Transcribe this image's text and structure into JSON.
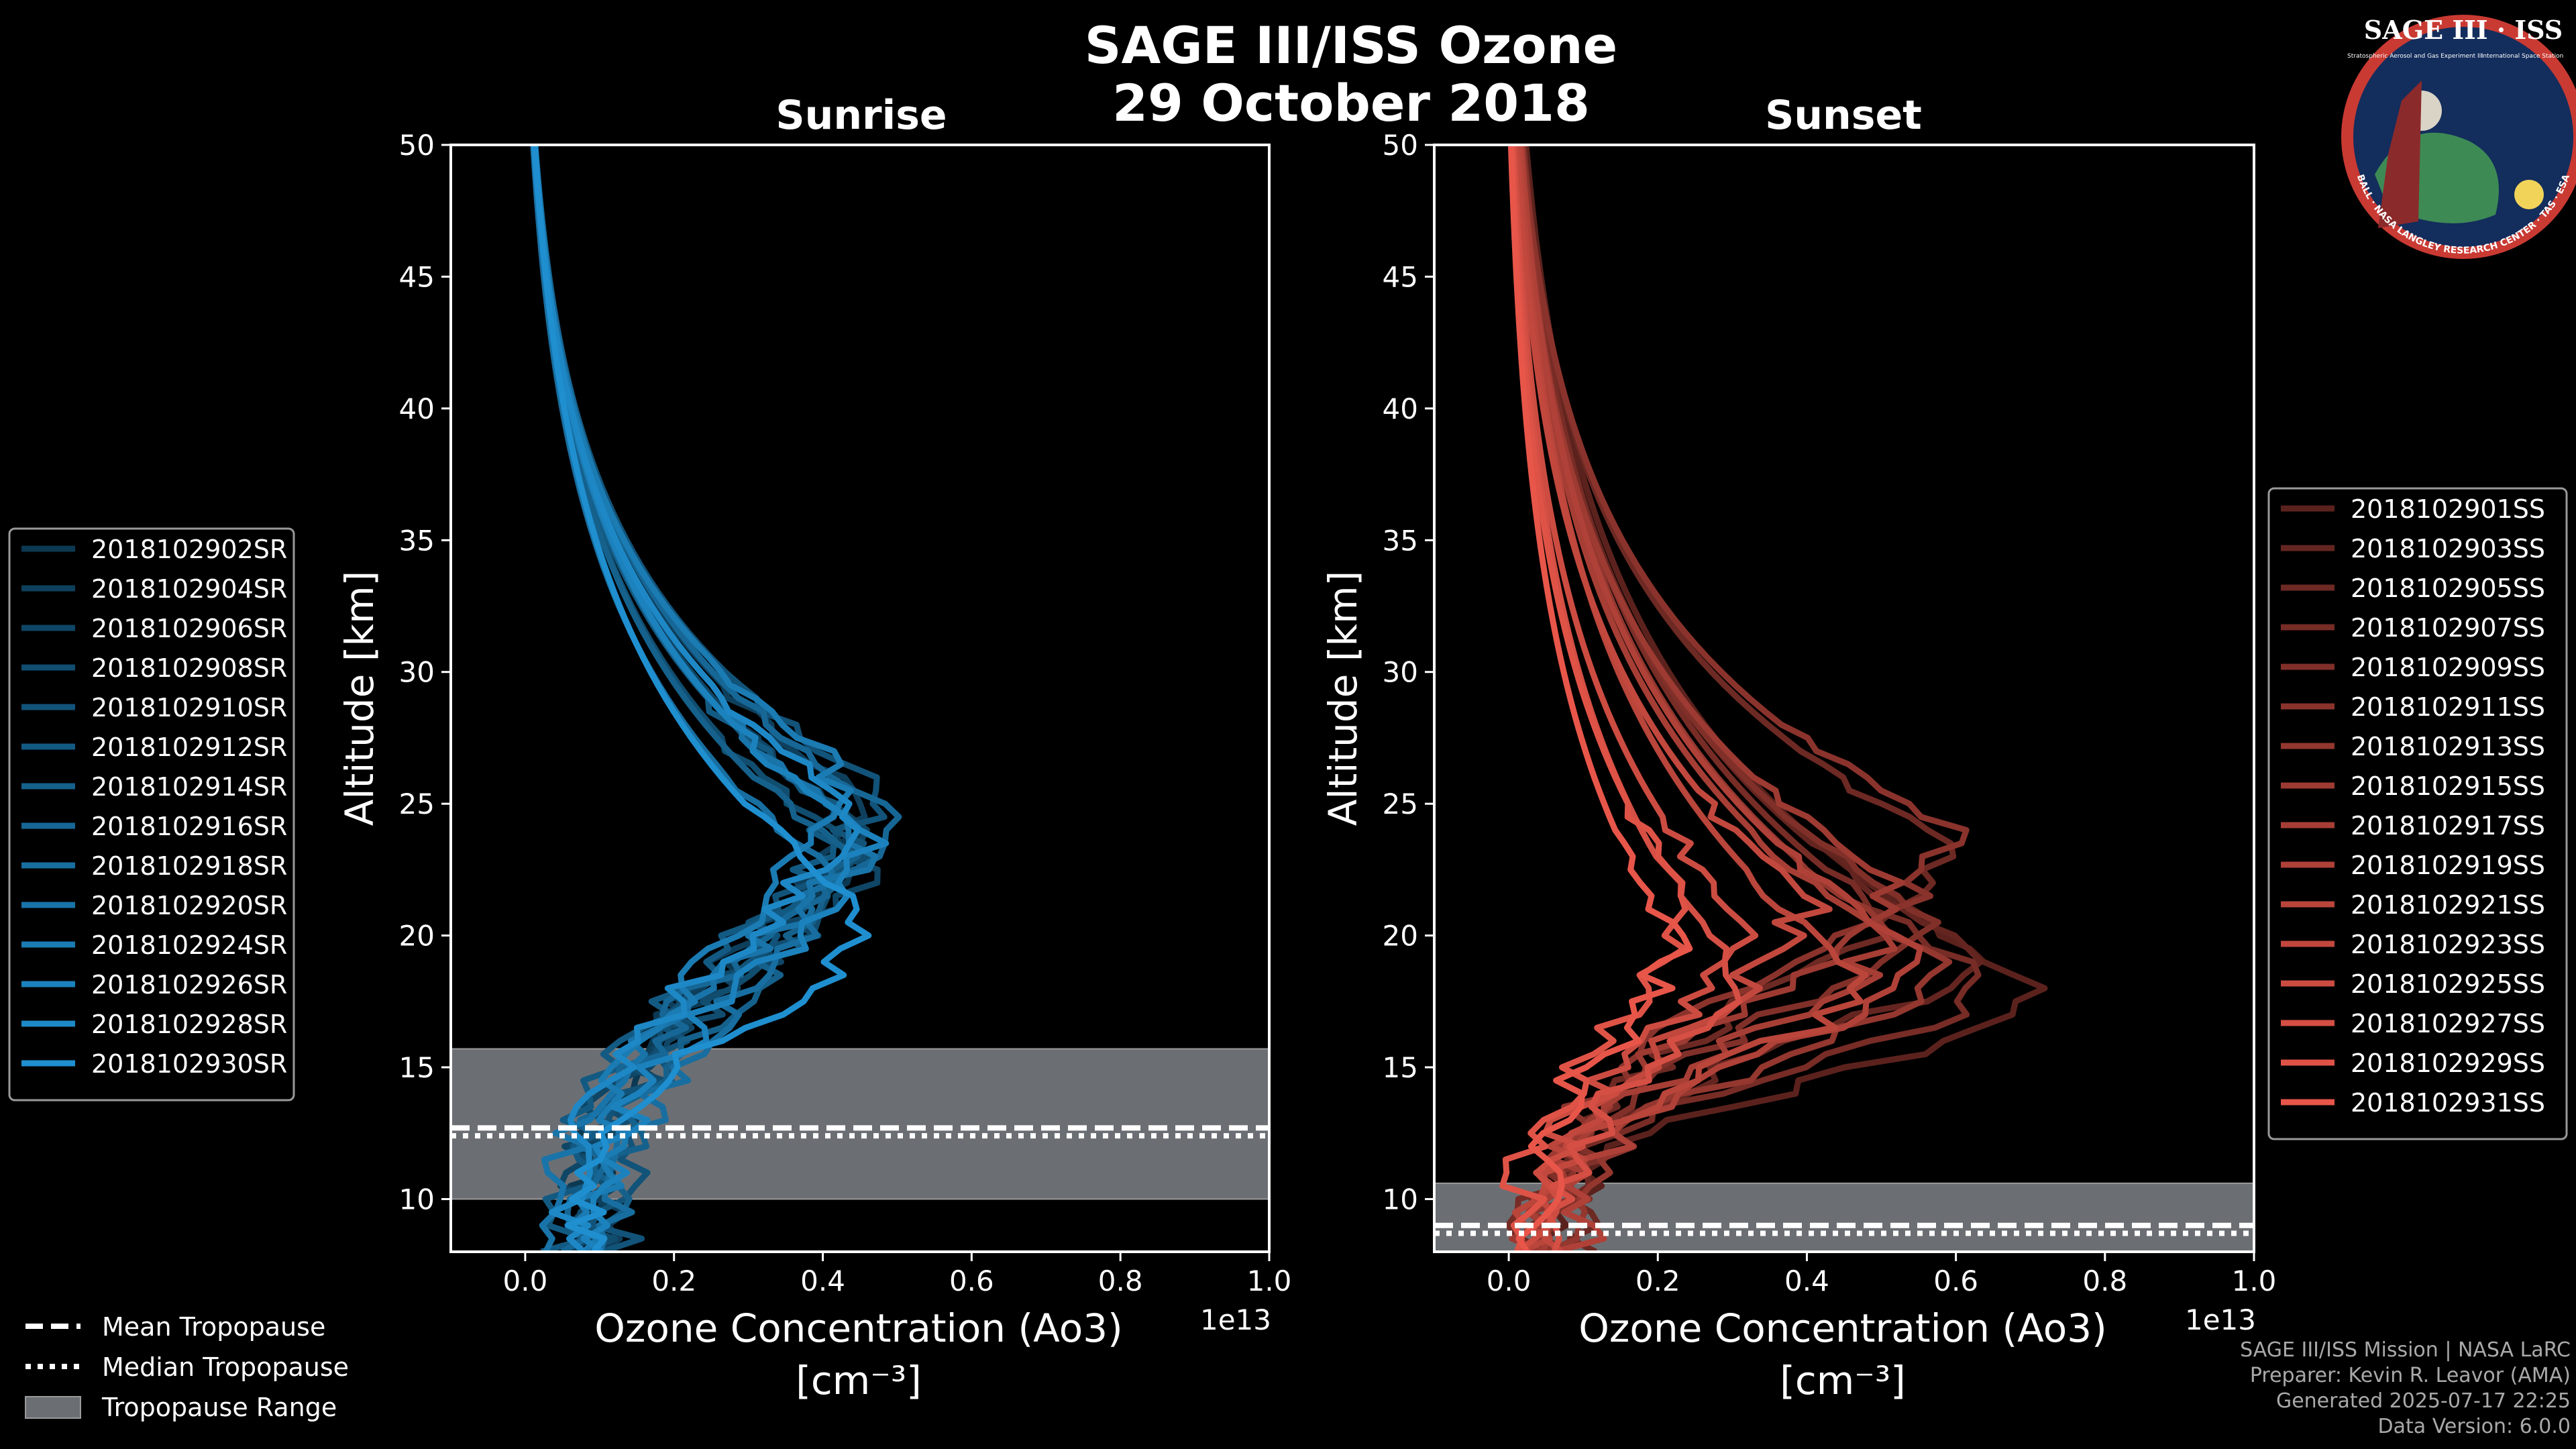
{
  "title": "SAGE III/ISS Ozone",
  "date": "29 October 2018",
  "logo": {
    "text": "SAGE III · ISS",
    "sub_left": "Stratospheric Aerosol and Gas Experiment III",
    "sub_right": "International Space Station",
    "ring": "BALL · NASA LANGLEY RESEARCH CENTER · TAS · ESA"
  },
  "footer": {
    "mission": "SAGE III/ISS Mission | NASA LaRC",
    "preparer": "Preparer: Kevin R. Leavor (AMA)",
    "generated": "Generated 2025-07-17 22:25",
    "version": "Data Version: 6.0.0"
  },
  "shared_legend": {
    "mean": "Mean Tropopause",
    "median": "Median Tropopause",
    "range": "Tropopause Range"
  },
  "chart_data": [
    {
      "type": "line",
      "title": "Sunrise",
      "xlabel": "Ozone Concentration (Ao3)",
      "xunit": "[cm⁻³]",
      "ylabel": "Altitude [km]",
      "xscale_label": "1e13",
      "xlim": [
        -0.1,
        1.0
      ],
      "ylim": [
        8,
        50
      ],
      "xticks": [
        "0.0",
        "0.2",
        "0.4",
        "0.6",
        "0.8",
        "1.0"
      ],
      "xtick_values": [
        0,
        0.2,
        0.4,
        0.6,
        0.8,
        1.0
      ],
      "yticks": [
        10,
        15,
        20,
        25,
        30,
        35,
        40,
        45,
        50
      ],
      "color": "#1f8fd0",
      "tropopause": {
        "min": 10.0,
        "max": 15.7,
        "mean": 12.7,
        "median": 12.4
      },
      "series": [
        {
          "name": "2018102902SR",
          "peak_alt": 24.5,
          "peak_val": 0.44,
          "low_val": 0.08
        },
        {
          "name": "2018102904SR",
          "peak_alt": 25.5,
          "peak_val": 0.45,
          "low_val": 0.1
        },
        {
          "name": "2018102906SR",
          "peak_alt": 24.0,
          "peak_val": 0.47,
          "low_val": 0.06
        },
        {
          "name": "2018102908SR",
          "peak_alt": 23.5,
          "peak_val": 0.43,
          "low_val": 0.09
        },
        {
          "name": "2018102910SR",
          "peak_alt": 26.0,
          "peak_val": 0.46,
          "low_val": 0.12
        },
        {
          "name": "2018102912SR",
          "peak_alt": 24.8,
          "peak_val": 0.42,
          "low_val": 0.05
        },
        {
          "name": "2018102914SR",
          "peak_alt": 23.0,
          "peak_val": 0.44,
          "low_val": 0.11
        },
        {
          "name": "2018102916SR",
          "peak_alt": 25.0,
          "peak_val": 0.48,
          "low_val": 0.07
        },
        {
          "name": "2018102918SR",
          "peak_alt": 22.5,
          "peak_val": 0.41,
          "low_val": 0.13
        },
        {
          "name": "2018102920SR",
          "peak_alt": 24.2,
          "peak_val": 0.45,
          "low_val": 0.04
        },
        {
          "name": "2018102924SR",
          "peak_alt": 26.5,
          "peak_val": 0.43,
          "low_val": 0.09
        },
        {
          "name": "2018102926SR",
          "peak_alt": 23.8,
          "peak_val": 0.47,
          "low_val": 0.1
        },
        {
          "name": "2018102928SR",
          "peak_alt": 25.2,
          "peak_val": 0.44,
          "low_val": 0.06
        },
        {
          "name": "2018102930SR",
          "peak_alt": 21.0,
          "peak_val": 0.46,
          "low_val": 0.08
        }
      ]
    },
    {
      "type": "line",
      "title": "Sunset",
      "xlabel": "Ozone Concentration (Ao3)",
      "xunit": "[cm⁻³]",
      "ylabel": "Altitude [km]",
      "xscale_label": "1e13",
      "xlim": [
        -0.1,
        1.0
      ],
      "ylim": [
        8,
        50
      ],
      "xticks": [
        "0.0",
        "0.2",
        "0.4",
        "0.6",
        "0.8",
        "1.0"
      ],
      "xtick_values": [
        0,
        0.2,
        0.4,
        0.6,
        0.8,
        1.0
      ],
      "yticks": [
        10,
        15,
        20,
        25,
        30,
        35,
        40,
        45,
        50
      ],
      "color": "#e8564a",
      "tropopause": {
        "min": 8.0,
        "max": 10.6,
        "mean": 9.0,
        "median": 8.7
      },
      "series": [
        {
          "name": "2018102901SS",
          "peak_alt": 18.0,
          "peak_val": 0.72,
          "low_val": 0.05
        },
        {
          "name": "2018102903SS",
          "peak_alt": 19.5,
          "peak_val": 0.62,
          "low_val": 0.03
        },
        {
          "name": "2018102905SS",
          "peak_alt": 23.5,
          "peak_val": 0.6,
          "low_val": 0.08
        },
        {
          "name": "2018102907SS",
          "peak_alt": 18.5,
          "peak_val": 0.64,
          "low_val": 0.02
        },
        {
          "name": "2018102909SS",
          "peak_alt": 21.0,
          "peak_val": 0.55,
          "low_val": 0.06
        },
        {
          "name": "2018102911SS",
          "peak_alt": 24.0,
          "peak_val": 0.6,
          "low_val": 0.04
        },
        {
          "name": "2018102913SS",
          "peak_alt": 19.0,
          "peak_val": 0.58,
          "low_val": 0.07
        },
        {
          "name": "2018102915SS",
          "peak_alt": 22.0,
          "peak_val": 0.52,
          "low_val": 0.03
        },
        {
          "name": "2018102917SS",
          "peak_alt": 20.0,
          "peak_val": 0.5,
          "low_val": 0.05
        },
        {
          "name": "2018102919SS",
          "peak_alt": 19.5,
          "peak_val": 0.55,
          "low_val": 0.09
        },
        {
          "name": "2018102921SS",
          "peak_alt": 18.5,
          "peak_val": 0.48,
          "low_val": 0.02
        },
        {
          "name": "2018102923SS",
          "peak_alt": 21.5,
          "peak_val": 0.4,
          "low_val": 0.06
        },
        {
          "name": "2018102925SS",
          "peak_alt": 20.5,
          "peak_val": 0.32,
          "low_val": 0.04
        },
        {
          "name": "2018102927SS",
          "peak_alt": 19.0,
          "peak_val": 0.3,
          "low_val": 0.07
        },
        {
          "name": "2018102929SS",
          "peak_alt": 21.0,
          "peak_val": 0.25,
          "low_val": 0.01
        },
        {
          "name": "2018102931SS",
          "peak_alt": 20.0,
          "peak_val": 0.22,
          "low_val": 0.03
        }
      ]
    }
  ]
}
